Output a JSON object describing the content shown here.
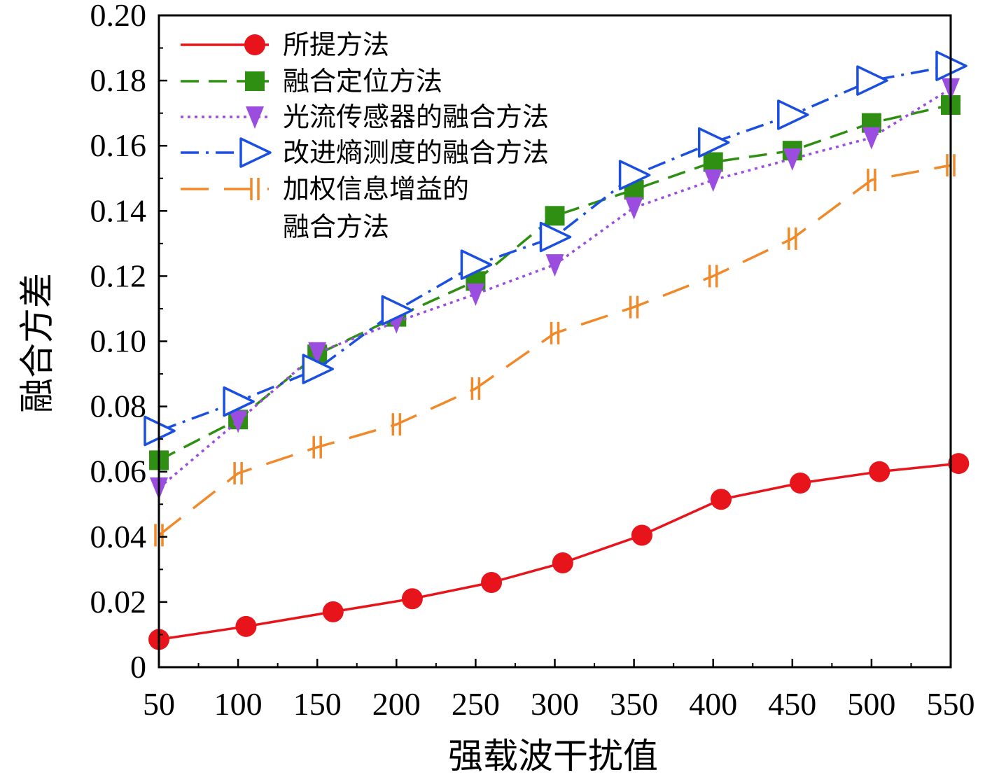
{
  "chart_data": {
    "type": "line",
    "title": "",
    "xlabel": "强载波干扰值",
    "ylabel": "融合方差",
    "xlim": [
      50,
      550
    ],
    "ylim": [
      0,
      0.2
    ],
    "x_ticks": [
      "50",
      "100",
      "150",
      "200",
      "250",
      "300",
      "350",
      "400",
      "450",
      "500",
      "550"
    ],
    "y_ticks": [
      "0",
      "0.02",
      "0.04",
      "0.06",
      "0.08",
      "0.10",
      "0.12",
      "0.14",
      "0.16",
      "0.18",
      "0.20"
    ],
    "legend_position": "top-left",
    "series": [
      {
        "name": "所提方法",
        "color": "#e8141b",
        "dash": "solid",
        "marker": "circle",
        "x": [
          50,
          105,
          160,
          210,
          260,
          305,
          355,
          405,
          455,
          505,
          555
        ],
        "values": [
          0.0085,
          0.0125,
          0.017,
          0.021,
          0.026,
          0.032,
          0.0405,
          0.0515,
          0.0565,
          0.06,
          0.0625
        ]
      },
      {
        "name": "融合定位方法",
        "color": "#2f8f12",
        "dash": "dash",
        "marker": "square",
        "x": [
          50,
          100,
          150,
          200,
          250,
          300,
          350,
          400,
          450,
          500,
          550
        ],
        "values": [
          0.0635,
          0.076,
          0.096,
          0.1075,
          0.1185,
          0.1385,
          0.1465,
          0.155,
          0.1585,
          0.167,
          0.1725
        ]
      },
      {
        "name": "光流传感器的融合方法",
        "color": "#9b4de0",
        "dash": "dot",
        "marker": "triangle-down",
        "x": [
          50,
          100,
          150,
          200,
          250,
          300,
          350,
          400,
          450,
          500,
          550
        ],
        "values": [
          0.055,
          0.0755,
          0.0965,
          0.106,
          0.1145,
          0.1235,
          0.141,
          0.1495,
          0.156,
          0.1625,
          0.1775
        ]
      },
      {
        "name": "改进熵测度的融合方法",
        "color": "#1a4fe0",
        "dash": "dashdot",
        "marker": "triangle-right",
        "x": [
          50,
          100,
          150,
          200,
          250,
          300,
          350,
          400,
          450,
          500,
          550
        ],
        "values": [
          0.0725,
          0.0815,
          0.0915,
          0.1095,
          0.1235,
          0.132,
          0.151,
          0.161,
          0.1695,
          0.18,
          0.1845
        ]
      },
      {
        "name": "加权信息增益的融合方法",
        "name_lines": [
          "加权信息增益的",
          "融合方法"
        ],
        "color": "#f0892a",
        "dash": "longdash",
        "marker": "double-bar",
        "x": [
          50,
          100,
          150,
          200,
          250,
          300,
          350,
          400,
          450,
          500,
          550
        ],
        "values": [
          0.0405,
          0.0595,
          0.0675,
          0.0745,
          0.0855,
          0.1025,
          0.1105,
          0.12,
          0.1315,
          0.1495,
          0.154
        ]
      }
    ]
  }
}
